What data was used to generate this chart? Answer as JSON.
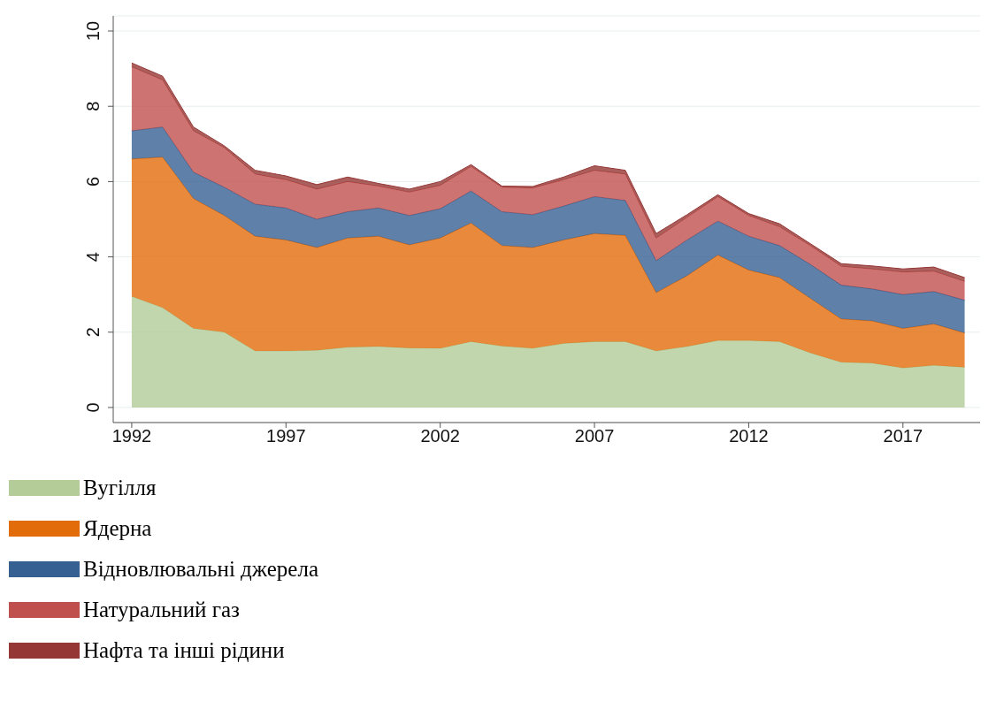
{
  "chart_data": {
    "type": "area",
    "stacked": true,
    "x": [
      1992,
      1993,
      1994,
      1995,
      1996,
      1997,
      1998,
      1999,
      2000,
      2001,
      2002,
      2003,
      2004,
      2005,
      2006,
      2007,
      2008,
      2009,
      2010,
      2011,
      2012,
      2013,
      2014,
      2015,
      2016,
      2017,
      2018,
      2019
    ],
    "series": [
      {
        "name": "Вугілля",
        "color": "#b3cc98",
        "values": [
          2.95,
          2.65,
          2.1,
          2.0,
          1.5,
          1.5,
          1.52,
          1.6,
          1.62,
          1.58,
          1.57,
          1.75,
          1.63,
          1.57,
          1.7,
          1.75,
          1.75,
          1.5,
          1.62,
          1.78,
          1.78,
          1.75,
          1.45,
          1.2,
          1.18,
          1.05,
          1.12,
          1.07
        ]
      },
      {
        "name": "Ядерна",
        "color": "#e36c0a",
        "values": [
          3.65,
          4.0,
          3.45,
          3.1,
          3.05,
          2.95,
          2.73,
          2.9,
          2.93,
          2.74,
          2.93,
          3.15,
          2.67,
          2.68,
          2.75,
          2.87,
          2.82,
          1.55,
          1.88,
          2.27,
          1.87,
          1.7,
          1.45,
          1.15,
          1.12,
          1.05,
          1.1,
          0.91
        ]
      },
      {
        "name": "Відновлювальні джерела",
        "color": "#376092",
        "values": [
          0.75,
          0.8,
          0.7,
          0.75,
          0.85,
          0.85,
          0.75,
          0.7,
          0.75,
          0.78,
          0.78,
          0.85,
          0.9,
          0.87,
          0.9,
          0.98,
          0.93,
          0.85,
          0.95,
          0.9,
          0.9,
          0.85,
          0.9,
          0.9,
          0.85,
          0.9,
          0.86,
          0.87
        ]
      },
      {
        "name": "Натуральний газ",
        "color": "#c0504d",
        "values": [
          1.7,
          1.25,
          1.1,
          1.05,
          0.8,
          0.75,
          0.8,
          0.8,
          0.58,
          0.62,
          0.62,
          0.65,
          0.65,
          0.71,
          0.7,
          0.7,
          0.7,
          0.6,
          0.6,
          0.65,
          0.55,
          0.5,
          0.5,
          0.5,
          0.53,
          0.6,
          0.54,
          0.5
        ]
      },
      {
        "name": "Нафта та інші рідини",
        "color": "#953735",
        "values": [
          0.1,
          0.1,
          0.1,
          0.05,
          0.1,
          0.1,
          0.12,
          0.12,
          0.07,
          0.08,
          0.1,
          0.05,
          0.03,
          0.04,
          0.07,
          0.12,
          0.1,
          0.12,
          0.07,
          0.05,
          0.05,
          0.08,
          0.05,
          0.07,
          0.08,
          0.08,
          0.11,
          0.1
        ]
      }
    ],
    "xlim": [
      1991.4,
      2019.5
    ],
    "xticks": [
      1992,
      1997,
      2002,
      2007,
      2012,
      2017
    ],
    "ylim": [
      -0.4,
      10.4
    ],
    "yticks": [
      0,
      2,
      4,
      6,
      8,
      10
    ],
    "grid": "y",
    "legend": "bottom"
  }
}
